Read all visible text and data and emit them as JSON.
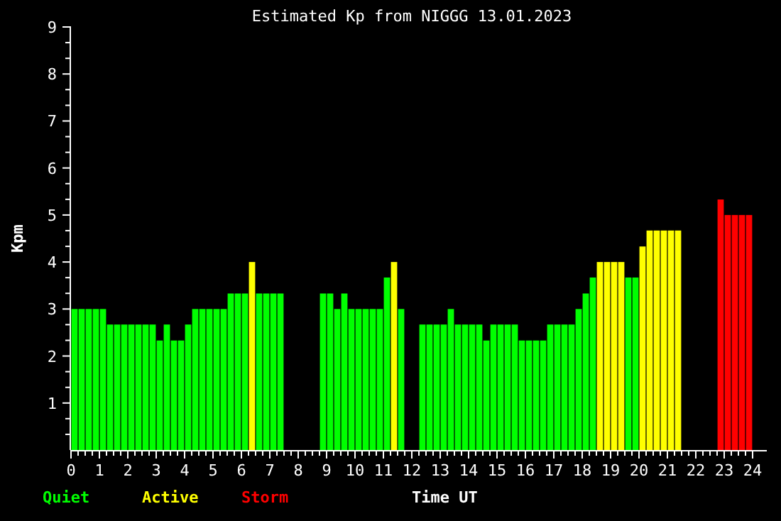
{
  "chart_data": {
    "type": "bar",
    "title": "Estimated Kp from NIGGG 13.01.2023",
    "xlabel": "Time UT",
    "ylabel": "Kpm",
    "legend": "bottom left",
    "xlim": [
      0,
      24
    ],
    "ylim": [
      0,
      9
    ],
    "xticks": [
      0,
      {
        "value": 0.25,
        "label": null
      },
      {
        "value": 0.5,
        "label": null
      },
      {
        "value": 0.75,
        "label": null
      },
      1,
      {
        "value": 1.25,
        "label": null
      },
      {
        "value": 1.5,
        "label": null
      },
      {
        "value": 1.75,
        "label": null
      },
      2,
      {
        "value": 2.25,
        "label": null
      },
      {
        "value": 2.5,
        "label": null
      },
      {
        "value": 2.75,
        "label": null
      },
      3,
      {
        "value": 3.25,
        "label": null
      },
      {
        "value": 3.5,
        "label": null
      },
      {
        "value": 3.75,
        "label": null
      },
      4,
      {
        "value": 4.25,
        "label": null
      },
      {
        "value": 4.5,
        "label": null
      },
      {
        "value": 4.75,
        "label": null
      },
      5,
      {
        "value": 5.25,
        "label": null
      },
      {
        "value": 5.5,
        "label": null
      },
      {
        "value": 5.75,
        "label": null
      },
      6,
      {
        "value": 6.25,
        "label": null
      },
      {
        "value": 6.5,
        "label": null
      },
      {
        "value": 6.75,
        "label": null
      },
      7,
      {
        "value": 7.25,
        "label": null
      },
      {
        "value": 7.5,
        "label": null
      },
      {
        "value": 7.75,
        "label": null
      },
      8,
      {
        "value": 8.25,
        "label": null
      },
      {
        "value": 8.5,
        "label": null
      },
      {
        "value": 8.75,
        "label": null
      },
      9,
      {
        "value": 9.25,
        "label": null
      },
      {
        "value": 9.5,
        "label": null
      },
      {
        "value": 9.75,
        "label": null
      },
      10,
      {
        "value": 10.25,
        "label": null
      },
      {
        "value": 10.5,
        "label": null
      },
      {
        "value": 10.75,
        "label": null
      },
      11,
      {
        "value": 11.25,
        "label": null
      },
      {
        "value": 11.5,
        "label": null
      },
      {
        "value": 11.75,
        "label": null
      },
      12,
      {
        "value": 12.25,
        "label": null
      },
      {
        "value": 12.5,
        "label": null
      },
      {
        "value": 12.75,
        "label": null
      },
      13,
      {
        "value": 13.25,
        "label": null
      },
      {
        "value": 13.5,
        "label": null
      },
      {
        "value": 13.75,
        "label": null
      },
      14,
      {
        "value": 14.25,
        "label": null
      },
      {
        "value": 14.5,
        "label": null
      },
      {
        "value": 14.75,
        "label": null
      },
      15,
      {
        "value": 15.25,
        "label": null
      },
      {
        "value": 15.5,
        "label": null
      },
      {
        "value": 15.75,
        "label": null
      },
      16,
      {
        "value": 16.25,
        "label": null
      },
      {
        "value": 16.5,
        "label": null
      },
      {
        "value": 16.75,
        "label": null
      },
      17,
      {
        "value": 17.25,
        "label": null
      },
      {
        "value": 17.5,
        "label": null
      },
      {
        "value": 17.75,
        "label": null
      },
      18,
      {
        "value": 18.25,
        "label": null
      },
      {
        "value": 18.5,
        "label": null
      },
      {
        "value": 18.75,
        "label": null
      },
      19,
      {
        "value": 19.25,
        "label": null
      },
      {
        "value": 19.5,
        "label": null
      },
      {
        "value": 19.75,
        "label": null
      },
      20,
      {
        "value": 20.25,
        "label": null
      },
      {
        "value": 20.5,
        "label": null
      },
      {
        "value": 20.75,
        "label": null
      },
      21,
      {
        "value": 21.25,
        "label": null
      },
      {
        "value": 21.5,
        "label": null
      },
      {
        "value": 21.75,
        "label": null
      },
      22,
      {
        "value": 22.25,
        "label": null
      },
      {
        "value": 22.5,
        "label": null
      },
      {
        "value": 22.75,
        "label": null
      },
      23,
      {
        "value": 23.25,
        "label": null
      },
      {
        "value": 23.5,
        "label": null
      },
      {
        "value": 23.75,
        "label": null
      },
      24
    ],
    "yticks": [
      {
        "value": 0.333,
        "label": null
      },
      {
        "value": 0.667,
        "label": null
      },
      1,
      {
        "value": 1.333,
        "label": null
      },
      {
        "value": 1.667,
        "label": null
      },
      2,
      {
        "value": 2.333,
        "label": null
      },
      {
        "value": 2.667,
        "label": null
      },
      3,
      {
        "value": 3.333,
        "label": null
      },
      {
        "value": 3.667,
        "label": null
      },
      4,
      {
        "value": 4.333,
        "label": null
      },
      {
        "value": 4.667,
        "label": null
      },
      5,
      {
        "value": 5.333,
        "label": null
      },
      {
        "value": 5.667,
        "label": null
      },
      6,
      {
        "value": 6.333,
        "label": null
      },
      {
        "value": 6.667,
        "label": null
      },
      7,
      {
        "value": 7.333,
        "label": null
      },
      {
        "value": 7.667,
        "label": null
      },
      8,
      {
        "value": 8.333,
        "label": null
      },
      {
        "value": 8.667,
        "label": null
      },
      9
    ],
    "x": [
      0.125,
      0.375,
      0.625,
      0.875,
      1.125,
      1.375,
      1.625,
      1.875,
      2.125,
      2.375,
      2.625,
      2.875,
      3.125,
      3.375,
      3.625,
      3.875,
      4.125,
      4.375,
      4.625,
      4.875,
      5.125,
      5.375,
      5.625,
      5.875,
      6.125,
      6.375,
      6.625,
      6.875,
      7.125,
      7.375,
      7.625,
      7.875,
      8.125,
      8.375,
      8.625,
      8.875,
      9.125,
      9.375,
      9.625,
      9.875,
      10.125,
      10.375,
      10.625,
      10.875,
      11.125,
      11.375,
      11.625,
      11.875,
      12.125,
      12.375,
      12.625,
      12.875,
      13.125,
      13.375,
      13.625,
      13.875,
      14.125,
      14.375,
      14.625,
      14.875,
      15.125,
      15.375,
      15.625,
      15.875,
      16.125,
      16.375,
      16.625,
      16.875,
      17.125,
      17.375,
      17.625,
      17.875,
      18.125,
      18.375,
      18.625,
      18.875,
      19.125,
      19.375,
      19.625,
      19.875,
      20.125,
      20.375,
      20.625,
      20.875,
      21.125,
      21.375,
      21.625,
      21.875,
      22.125,
      22.375,
      22.625,
      22.875,
      23.125,
      23.375,
      23.625,
      23.875
    ],
    "series": [
      {
        "name": "Quiet",
        "color": "#00ff00",
        "values": [
          3,
          3,
          3,
          3,
          3,
          2.67,
          2.67,
          2.67,
          2.67,
          2.67,
          2.67,
          2.67,
          2.33,
          2.67,
          2.33,
          2.33,
          2.67,
          3,
          3,
          3,
          3,
          3,
          3.33,
          3.33,
          3.33,
          null,
          3.33,
          3.33,
          3.33,
          3.33,
          null,
          null,
          null,
          null,
          null,
          3.33,
          3.33,
          3,
          3.33,
          3,
          3,
          3,
          3,
          3,
          3.67,
          null,
          3,
          null,
          null,
          2.67,
          2.67,
          2.67,
          2.67,
          3,
          2.67,
          2.67,
          2.67,
          2.67,
          2.33,
          2.67,
          2.67,
          2.67,
          2.67,
          2.33,
          2.33,
          2.33,
          2.33,
          2.67,
          2.67,
          2.67,
          2.67,
          3,
          3.33,
          3.67,
          null,
          null,
          null,
          null,
          3.67,
          3.67,
          null,
          null,
          null,
          null,
          null,
          null,
          null,
          null,
          null,
          null,
          null,
          null,
          null,
          null,
          null,
          null
        ]
      },
      {
        "name": "Active",
        "color": "#ffff00",
        "values": [
          null,
          null,
          null,
          null,
          null,
          null,
          null,
          null,
          null,
          null,
          null,
          null,
          null,
          null,
          null,
          null,
          null,
          null,
          null,
          null,
          null,
          null,
          null,
          null,
          null,
          4,
          null,
          null,
          null,
          null,
          null,
          null,
          null,
          null,
          null,
          null,
          null,
          null,
          null,
          null,
          null,
          null,
          null,
          null,
          null,
          4,
          null,
          null,
          null,
          null,
          null,
          null,
          null,
          null,
          null,
          null,
          null,
          null,
          null,
          null,
          null,
          null,
          null,
          null,
          null,
          null,
          null,
          null,
          null,
          null,
          null,
          null,
          null,
          null,
          4,
          4,
          4,
          4,
          null,
          null,
          4.33,
          4.67,
          4.67,
          4.67,
          4.67,
          4.67,
          null,
          null,
          null,
          null,
          null,
          null,
          null,
          null,
          null,
          null
        ]
      },
      {
        "name": "Storm",
        "color": "#ff0000",
        "values": [
          null,
          null,
          null,
          null,
          null,
          null,
          null,
          null,
          null,
          null,
          null,
          null,
          null,
          null,
          null,
          null,
          null,
          null,
          null,
          null,
          null,
          null,
          null,
          null,
          null,
          null,
          null,
          null,
          null,
          null,
          null,
          null,
          null,
          null,
          null,
          null,
          null,
          null,
          null,
          null,
          null,
          null,
          null,
          null,
          null,
          null,
          null,
          null,
          null,
          null,
          null,
          null,
          null,
          null,
          null,
          null,
          null,
          null,
          null,
          null,
          null,
          null,
          null,
          null,
          null,
          null,
          null,
          null,
          null,
          null,
          null,
          null,
          null,
          null,
          null,
          null,
          null,
          null,
          null,
          null,
          null,
          null,
          null,
          null,
          null,
          null,
          null,
          null,
          null,
          null,
          null,
          5.33,
          5,
          5,
          5,
          5
        ]
      }
    ]
  }
}
